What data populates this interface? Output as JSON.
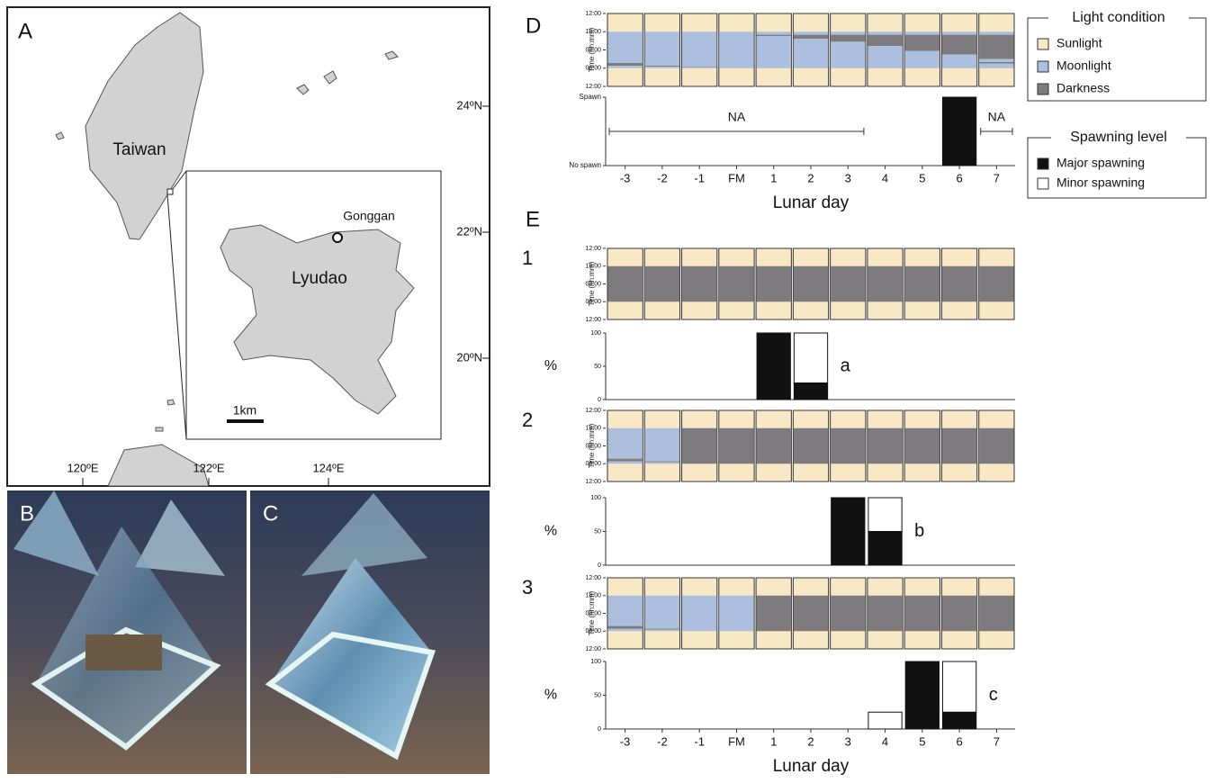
{
  "map": {
    "label": "A",
    "places": [
      "Taiwan",
      "Lyudao",
      "Gonggan"
    ],
    "scale": "1km",
    "lat": [
      "24ºN",
      "22ºN",
      "20ºN"
    ],
    "lon": [
      "120ºE",
      "122ºE",
      "124ºE"
    ]
  },
  "photos": [
    "B",
    "C"
  ],
  "light_legend": {
    "title": "Light condition",
    "items": [
      {
        "name": "Sunlight",
        "color": "#f8e8c6"
      },
      {
        "name": "Moonlight",
        "color": "#adbfdf"
      },
      {
        "name": "Darkness",
        "color": "#7e7b7e"
      }
    ]
  },
  "spawn_legend": {
    "title": "Spawning level",
    "items": [
      {
        "name": "Major spawning",
        "color": "#111111"
      },
      {
        "name": "Minor spawning",
        "color": "#ffffff"
      }
    ]
  },
  "chart_data": [
    {
      "type": "light",
      "panel": "D",
      "ylabel": "Time (hh:mm)",
      "ylim": [
        0,
        24
      ],
      "yticks": [
        {
          "value": 0,
          "label": "12:00"
        },
        {
          "value": 6,
          "label": "18:00"
        },
        {
          "value": 12,
          "label": "00:00"
        },
        {
          "value": 18,
          "label": "06:00"
        },
        {
          "value": 24,
          "label": "12:00"
        }
      ],
      "night": [
        [
          [
            6,
            16.3,
            1
          ],
          [
            16.3,
            17.2,
            2
          ],
          [
            17.2,
            18,
            1
          ]
        ],
        [
          [
            6,
            17.2,
            1
          ],
          [
            17.2,
            17.5,
            2
          ],
          [
            17.5,
            18,
            1
          ]
        ],
        [
          [
            6,
            17.5,
            1
          ],
          [
            17.5,
            17.7,
            2
          ],
          [
            17.7,
            18,
            1
          ]
        ],
        [
          [
            6,
            18,
            1
          ]
        ],
        [
          [
            6,
            7,
            1
          ],
          [
            7,
            7.4,
            2
          ],
          [
            7.4,
            18,
            1
          ]
        ],
        [
          [
            6,
            7,
            1
          ],
          [
            7,
            8.3,
            2
          ],
          [
            8.3,
            18,
            1
          ]
        ],
        [
          [
            6,
            7,
            1
          ],
          [
            7,
            9.3,
            2
          ],
          [
            9.3,
            18,
            1
          ]
        ],
        [
          [
            6,
            7,
            1
          ],
          [
            7,
            10.7,
            2
          ],
          [
            10.7,
            18,
            1
          ]
        ],
        [
          [
            6,
            7,
            1
          ],
          [
            7,
            12.3,
            2
          ],
          [
            12.3,
            18,
            1
          ]
        ],
        [
          [
            6,
            7,
            1
          ],
          [
            7,
            13.5,
            2
          ],
          [
            13.5,
            18,
            1
          ]
        ],
        [
          [
            6,
            7,
            1
          ],
          [
            7,
            15,
            2
          ],
          [
            15,
            16,
            1
          ],
          [
            16,
            16.5,
            2
          ],
          [
            16.5,
            18,
            1
          ]
        ]
      ]
    },
    {
      "type": "spawn",
      "categories": [
        "-3",
        "-2",
        "-1",
        "FM",
        "1",
        "2",
        "3",
        "4",
        "5",
        "6",
        "7"
      ],
      "xlabel": "Lunar day",
      "ylim": [
        0,
        1
      ],
      "yticks": [
        {
          "value": 0,
          "label": "No spawn"
        },
        {
          "value": 1,
          "label": "Spawn"
        }
      ],
      "major": [
        null,
        null,
        null,
        null,
        null,
        null,
        null,
        null,
        null,
        1,
        null
      ],
      "minor": [
        null,
        null,
        null,
        null,
        null,
        null,
        null,
        null,
        null,
        null,
        null
      ],
      "annotations": [
        {
          "text": "NA",
          "range": [
            0,
            6
          ]
        },
        {
          "text": "NA",
          "range": [
            10,
            10
          ]
        }
      ]
    },
    {
      "type": "light",
      "panel": "E",
      "label": "1",
      "ylabel": "Time (hh:mm)",
      "ylim": [
        0,
        24
      ],
      "yticks": [
        {
          "value": 0,
          "label": "12:00"
        },
        {
          "value": 6,
          "label": "18:00"
        },
        {
          "value": 12,
          "label": "00:00"
        },
        {
          "value": 18,
          "label": "06:00"
        },
        {
          "value": 24,
          "label": "12:00"
        }
      ],
      "night": [
        [
          [
            6,
            18,
            2
          ]
        ],
        [
          [
            6,
            18,
            2
          ]
        ],
        [
          [
            6,
            18,
            2
          ]
        ],
        [
          [
            6,
            18,
            2
          ]
        ],
        [
          [
            6,
            18,
            2
          ]
        ],
        [
          [
            6,
            18,
            2
          ]
        ],
        [
          [
            6,
            18,
            2
          ]
        ],
        [
          [
            6,
            18,
            2
          ]
        ],
        [
          [
            6,
            18,
            2
          ]
        ],
        [
          [
            6,
            18,
            2
          ]
        ],
        [
          [
            6,
            18,
            2
          ]
        ]
      ]
    },
    {
      "type": "spawn",
      "ylabel": "%",
      "ylim": [
        0,
        100
      ],
      "yticks": [
        0,
        50,
        100
      ],
      "major": [
        null,
        null,
        null,
        null,
        100,
        25,
        null,
        null,
        null,
        null,
        null
      ],
      "minor": [
        null,
        null,
        null,
        null,
        null,
        75,
        null,
        null,
        null,
        null,
        null
      ],
      "note": "a"
    },
    {
      "type": "light",
      "label": "2",
      "ylabel": "Time (hh:mm)",
      "ylim": [
        0,
        24
      ],
      "yticks": [
        {
          "value": 0,
          "label": "12:00"
        },
        {
          "value": 6,
          "label": "18:00"
        },
        {
          "value": 12,
          "label": "00:00"
        },
        {
          "value": 18,
          "label": "06:00"
        },
        {
          "value": 24,
          "label": "12:00"
        }
      ],
      "night": [
        [
          [
            6,
            16.3,
            1
          ],
          [
            16.3,
            17.2,
            2
          ],
          [
            17.2,
            18,
            1
          ]
        ],
        [
          [
            6,
            17.2,
            1
          ],
          [
            17.2,
            17.5,
            2
          ],
          [
            17.5,
            18,
            1
          ]
        ],
        [
          [
            6,
            18,
            2
          ]
        ],
        [
          [
            6,
            18,
            2
          ]
        ],
        [
          [
            6,
            18,
            2
          ]
        ],
        [
          [
            6,
            18,
            2
          ]
        ],
        [
          [
            6,
            18,
            2
          ]
        ],
        [
          [
            6,
            18,
            2
          ]
        ],
        [
          [
            6,
            18,
            2
          ]
        ],
        [
          [
            6,
            18,
            2
          ]
        ],
        [
          [
            6,
            18,
            2
          ]
        ]
      ]
    },
    {
      "type": "spawn",
      "ylabel": "%",
      "ylim": [
        0,
        100
      ],
      "yticks": [
        0,
        50,
        100
      ],
      "major": [
        null,
        null,
        null,
        null,
        null,
        null,
        100,
        50,
        null,
        null,
        null
      ],
      "minor": [
        null,
        null,
        null,
        null,
        null,
        null,
        null,
        50,
        null,
        null,
        null
      ],
      "note": "b"
    },
    {
      "type": "light",
      "label": "3",
      "ylabel": "Time (hh:mm)",
      "ylim": [
        0,
        24
      ],
      "yticks": [
        {
          "value": 0,
          "label": "12:00"
        },
        {
          "value": 6,
          "label": "18:00"
        },
        {
          "value": 12,
          "label": "00:00"
        },
        {
          "value": 18,
          "label": "06:00"
        },
        {
          "value": 24,
          "label": "12:00"
        }
      ],
      "night": [
        [
          [
            6,
            16.3,
            1
          ],
          [
            16.3,
            17.2,
            2
          ],
          [
            17.2,
            18,
            1
          ]
        ],
        [
          [
            6,
            17.2,
            1
          ],
          [
            17.2,
            17.5,
            2
          ],
          [
            17.5,
            18,
            1
          ]
        ],
        [
          [
            6,
            18,
            1
          ]
        ],
        [
          [
            6,
            18,
            1
          ]
        ],
        [
          [
            6,
            18,
            2
          ]
        ],
        [
          [
            6,
            18,
            2
          ]
        ],
        [
          [
            6,
            18,
            2
          ]
        ],
        [
          [
            6,
            18,
            2
          ]
        ],
        [
          [
            6,
            18,
            2
          ]
        ],
        [
          [
            6,
            18,
            2
          ]
        ],
        [
          [
            6,
            18,
            2
          ]
        ]
      ]
    },
    {
      "type": "spawn",
      "ylabel": "%",
      "categories": [
        "-3",
        "-2",
        "-1",
        "FM",
        "1",
        "2",
        "3",
        "4",
        "5",
        "6",
        "7"
      ],
      "xlabel": "Lunar day",
      "ylim": [
        0,
        100
      ],
      "yticks": [
        0,
        50,
        100
      ],
      "major": [
        null,
        null,
        null,
        null,
        null,
        null,
        null,
        null,
        100,
        25,
        null
      ],
      "minor": [
        null,
        null,
        null,
        null,
        null,
        null,
        null,
        25,
        null,
        75,
        null
      ],
      "note": "c"
    }
  ]
}
